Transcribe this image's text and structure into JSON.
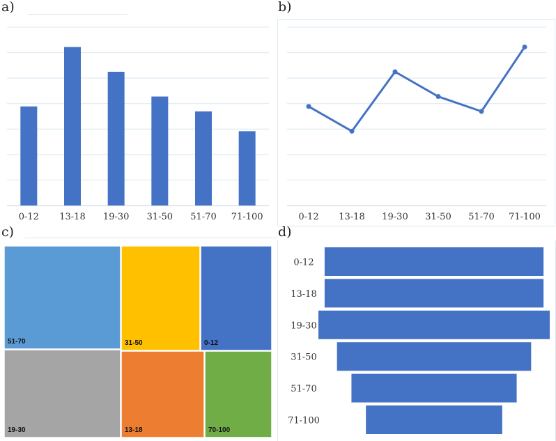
{
  "panels": {
    "a": "a)",
    "b": "b)",
    "c": "c)",
    "d": "d)"
  },
  "colors": {
    "blue": "#4472c4",
    "lightblue": "#5b9bd5",
    "gold": "#ffc000",
    "gray": "#a5a5a5",
    "orange": "#ed7d31",
    "green": "#70ad47",
    "grid": "#d9e8f0"
  },
  "chart_data": [
    {
      "type": "bar",
      "categories": [
        "0-12",
        "13-18",
        "19-30",
        "31-50",
        "51-70",
        "71-100"
      ],
      "values": [
        4,
        6.4,
        5.4,
        4.4,
        3.8,
        3
      ],
      "ylim": [
        0,
        7.2
      ],
      "grid": true,
      "title": "",
      "xlabel": "",
      "ylabel": ""
    },
    {
      "type": "line",
      "categories": [
        "0-12",
        "13-18",
        "19-30",
        "31-50",
        "51-70",
        "71-100"
      ],
      "values": [
        4,
        3,
        5.4,
        4.4,
        3.8,
        6.4
      ],
      "ylim": [
        0,
        7.2
      ],
      "grid": true,
      "markers": true,
      "title": "",
      "xlabel": "",
      "ylabel": ""
    },
    {
      "type": "treemap",
      "items": [
        {
          "label": "51-70",
          "color": "#5b9bd5"
        },
        {
          "label": "31-50",
          "color": "#ffc000"
        },
        {
          "label": "0-12",
          "color": "#4472c4"
        },
        {
          "label": "19-30",
          "color": "#a5a5a5"
        },
        {
          "label": "13-18",
          "color": "#ed7d31"
        },
        {
          "label": "70-100",
          "color": "#70ad47"
        }
      ]
    },
    {
      "type": "funnel",
      "categories": [
        "0-12",
        "13-18",
        "19-30",
        "31-50",
        "51-70",
        "71-100"
      ],
      "values": [
        5.3,
        5.3,
        5.6,
        4.7,
        4.0,
        3.3
      ]
    }
  ]
}
